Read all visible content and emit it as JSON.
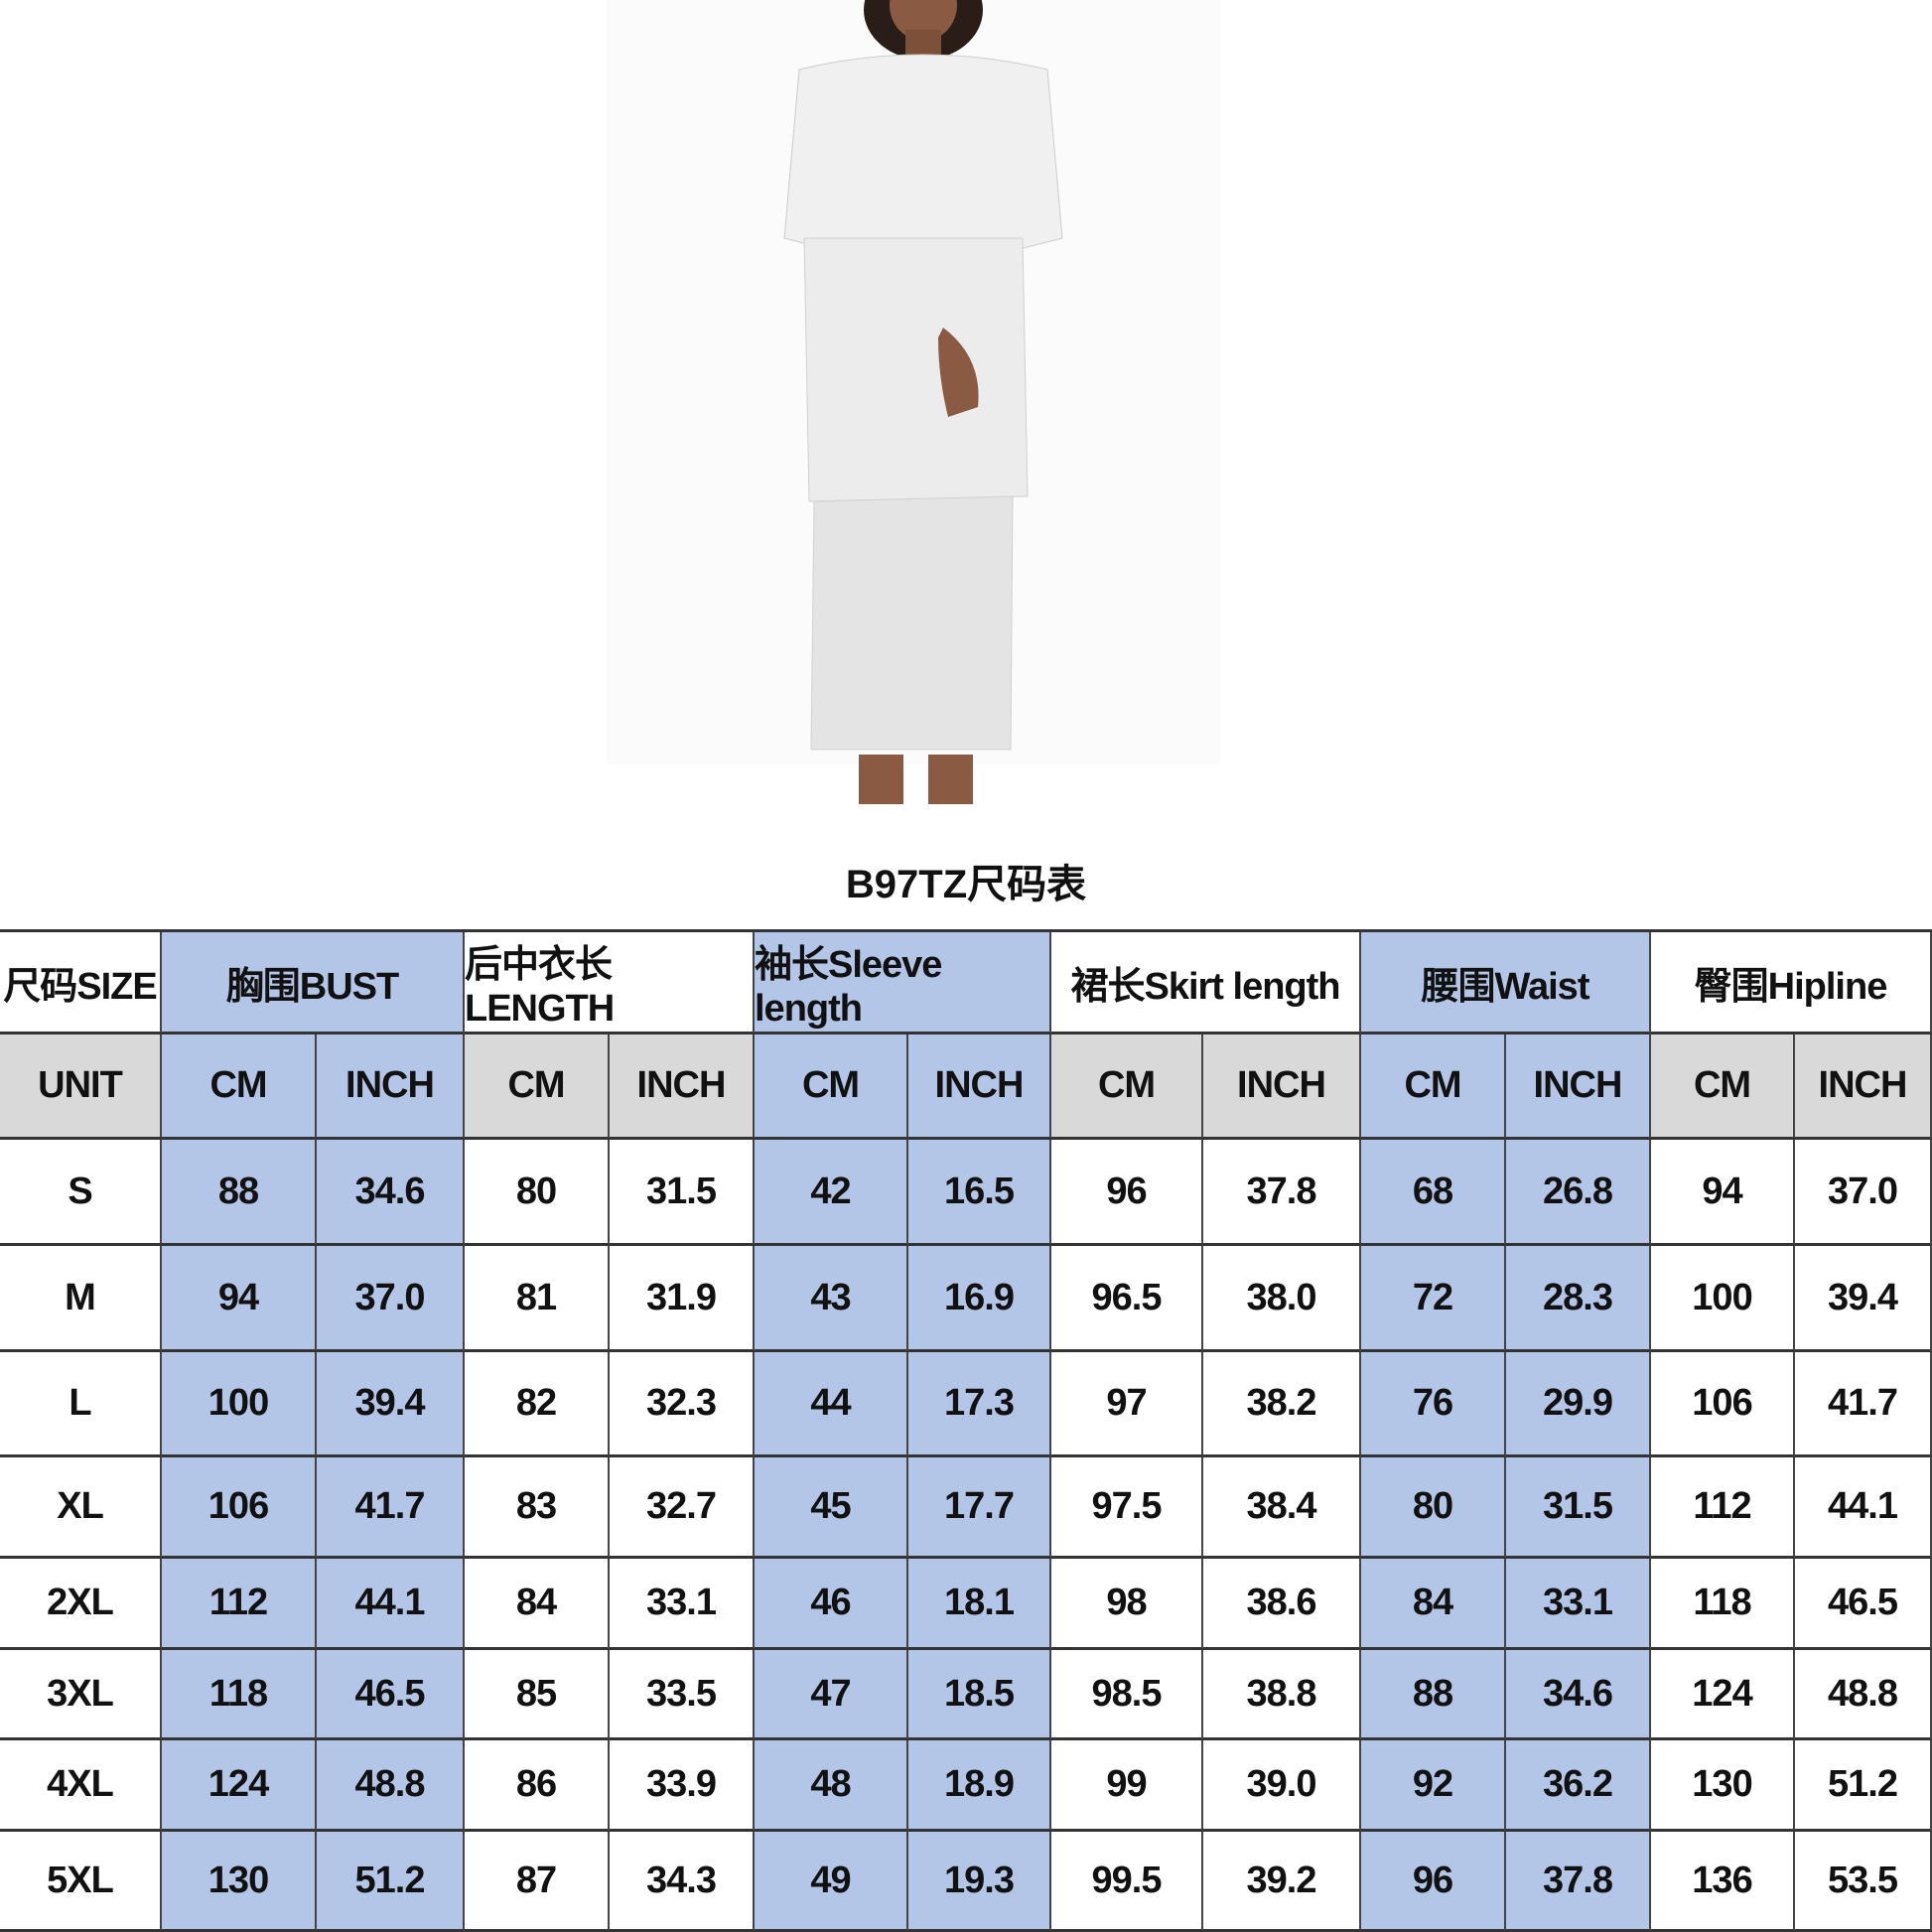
{
  "title": "B97TZ尺码表",
  "table": {
    "header": [
      "尺码SIZE",
      "胸围BUST",
      "后中衣长LENGTH",
      "袖长Sleeve length",
      "裙长Skirt length",
      "腰围Waist",
      "臀围Hipline"
    ],
    "units": [
      "UNIT",
      "CM",
      "INCH",
      "CM",
      "INCH",
      "CM",
      "INCH",
      "CM",
      "INCH",
      "CM",
      "INCH",
      "CM",
      "INCH"
    ],
    "rows": [
      [
        "S",
        "88",
        "34.6",
        "80",
        "31.5",
        "42",
        "16.5",
        "96",
        "37.8",
        "68",
        "26.8",
        "94",
        "37.0"
      ],
      [
        "M",
        "94",
        "37.0",
        "81",
        "31.9",
        "43",
        "16.9",
        "96.5",
        "38.0",
        "72",
        "28.3",
        "100",
        "39.4"
      ],
      [
        "L",
        "100",
        "39.4",
        "82",
        "32.3",
        "44",
        "17.3",
        "97",
        "38.2",
        "76",
        "29.9",
        "106",
        "41.7"
      ],
      [
        "XL",
        "106",
        "41.7",
        "83",
        "32.7",
        "45",
        "17.7",
        "97.5",
        "38.4",
        "80",
        "31.5",
        "112",
        "44.1"
      ],
      [
        "2XL",
        "112",
        "44.1",
        "84",
        "33.1",
        "46",
        "18.1",
        "98",
        "38.6",
        "84",
        "33.1",
        "118",
        "46.5"
      ],
      [
        "3XL",
        "118",
        "46.5",
        "85",
        "33.5",
        "47",
        "18.5",
        "98.5",
        "38.8",
        "88",
        "34.6",
        "124",
        "48.8"
      ],
      [
        "4XL",
        "124",
        "48.8",
        "86",
        "33.9",
        "48",
        "18.9",
        "99",
        "39.0",
        "92",
        "36.2",
        "130",
        "51.2"
      ],
      [
        "5XL",
        "130",
        "51.2",
        "87",
        "34.3",
        "49",
        "19.3",
        "99.5",
        "39.2",
        "96",
        "37.8",
        "136",
        "53.5"
      ]
    ]
  }
}
